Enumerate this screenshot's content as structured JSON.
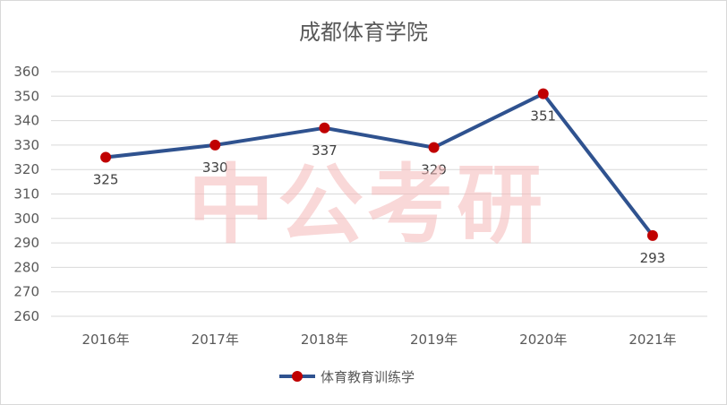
{
  "chart_data": {
    "type": "line",
    "title": "成都体育学院",
    "categories": [
      "2016年",
      "2017年",
      "2018年",
      "2019年",
      "2020年",
      "2021年"
    ],
    "series": [
      {
        "name": "体育教育训练学",
        "values": [
          325,
          330,
          337,
          329,
          351,
          293
        ],
        "color": "#2f528f",
        "marker_color": "#c00000"
      }
    ],
    "data_labels": [
      "325",
      "330",
      "337",
      "329",
      "351",
      "293"
    ],
    "ylim": [
      260,
      360
    ],
    "yticks": [
      260,
      270,
      280,
      290,
      300,
      310,
      320,
      330,
      340,
      350,
      360
    ],
    "grid": true,
    "legend_position": "bottom",
    "xlabel": "",
    "ylabel": ""
  },
  "watermark": "中公考研"
}
